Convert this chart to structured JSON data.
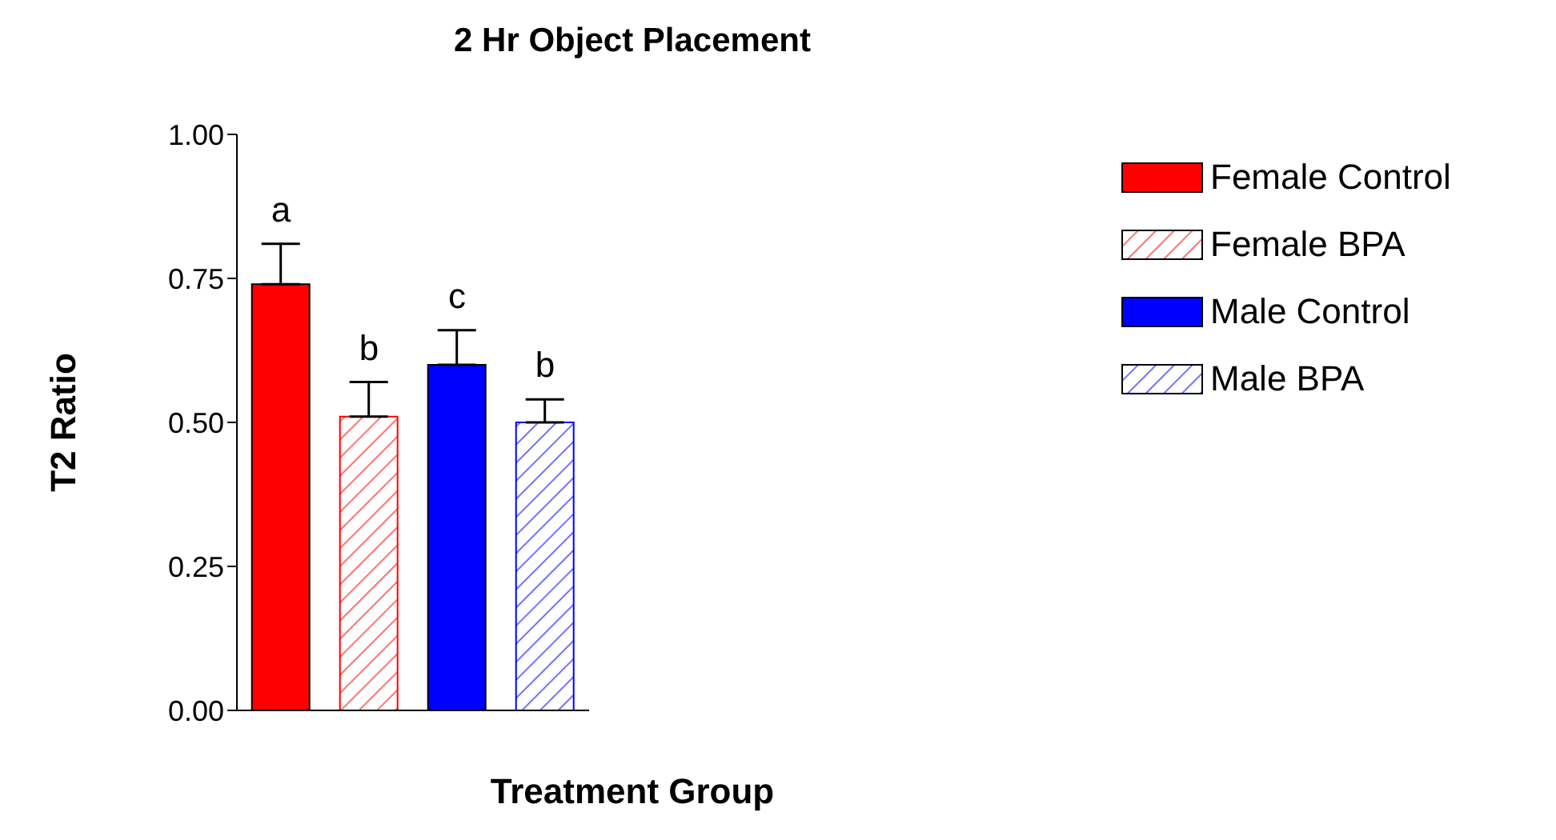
{
  "chart_data": {
    "type": "bar",
    "title": "2 Hr Object Placement",
    "xlabel": "Treatment Group",
    "ylabel": "T2 Ratio",
    "categories": [
      null,
      null,
      null,
      null
    ],
    "series": [
      {
        "name": "Female Control",
        "color": "#ff0000",
        "values": [
          0.74,
          null,
          null,
          null
        ],
        "errors": [
          [
            0.74,
            0.81
          ],
          null,
          null,
          null
        ]
      },
      {
        "name": "Female BPA",
        "color": "#ff0000",
        "values": [
          null,
          0.51,
          null,
          null
        ],
        "errors": [
          null,
          [
            0.51,
            0.57
          ],
          null,
          null
        ]
      },
      {
        "name": "Male Control",
        "color": "#0000ff",
        "values": [
          null,
          null,
          0.6,
          null
        ],
        "errors": [
          null,
          null,
          [
            0.6,
            0.66
          ],
          null
        ]
      },
      {
        "name": "Male BPA",
        "color": "#0000ff",
        "values": [
          null,
          null,
          null,
          0.5
        ],
        "errors": [
          null,
          null,
          null,
          [
            0.5,
            0.54
          ]
        ]
      }
    ],
    "annotations": [
      "a",
      "b",
      "c",
      "b"
    ],
    "ylim": [
      0,
      1
    ],
    "yticks": [
      {
        "value": 0,
        "label": "0.00"
      },
      {
        "value": 0.25,
        "label": "0.25"
      },
      {
        "value": 0.5,
        "label": "0.50"
      },
      {
        "value": 0.75,
        "label": "0.75"
      },
      {
        "value": 1,
        "label": "1.00"
      }
    ],
    "tick_labels": "y",
    "grid": false,
    "legend": "right"
  }
}
